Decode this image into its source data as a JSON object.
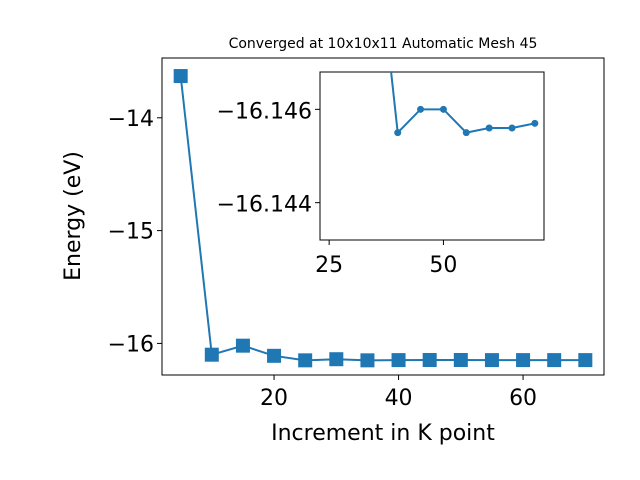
{
  "chart_data": [
    {
      "type": "line",
      "title": "Converged at 10x10x11 Automatic Mesh 45",
      "xlabel": "Increment in K point",
      "ylabel": "Energy (eV)",
      "xlim": [
        2,
        73
      ],
      "ylim": [
        -16.28,
        -13.47
      ],
      "xticks": [
        20,
        40,
        60
      ],
      "xtick_labels": [
        "20",
        "40",
        "60"
      ],
      "yticks": [
        -14,
        -15,
        -16
      ],
      "ytick_labels": [
        "−14",
        "−15",
        "−16"
      ],
      "marker": "square",
      "color": "#1f77b4",
      "x": [
        5,
        10,
        15,
        20,
        25,
        30,
        35,
        40,
        45,
        50,
        55,
        60,
        65,
        70
      ],
      "y": [
        -13.63,
        -16.1,
        -16.02,
        -16.11,
        -16.15,
        -16.14,
        -16.15,
        -16.148,
        -16.147,
        -16.147,
        -16.148,
        -16.148,
        -16.148,
        -16.148
      ]
    },
    {
      "type": "line",
      "inset": true,
      "marker": "circle",
      "color": "#1f77b4",
      "xlim": [
        23,
        72
      ],
      "ylim": [
        -16.1432,
        -16.1468
      ],
      "xticks": [
        25,
        50
      ],
      "xtick_labels": [
        "25",
        "50"
      ],
      "yticks": [
        -16.146,
        -16.144
      ],
      "ytick_labels": [
        "−16.146",
        "−16.144"
      ],
      "x": [
        35,
        40,
        45,
        50,
        55,
        60,
        65,
        70
      ],
      "y": [
        -16.15,
        -16.1455,
        -16.146,
        -16.146,
        -16.1455,
        -16.1456,
        -16.1456,
        -16.1457
      ]
    }
  ]
}
